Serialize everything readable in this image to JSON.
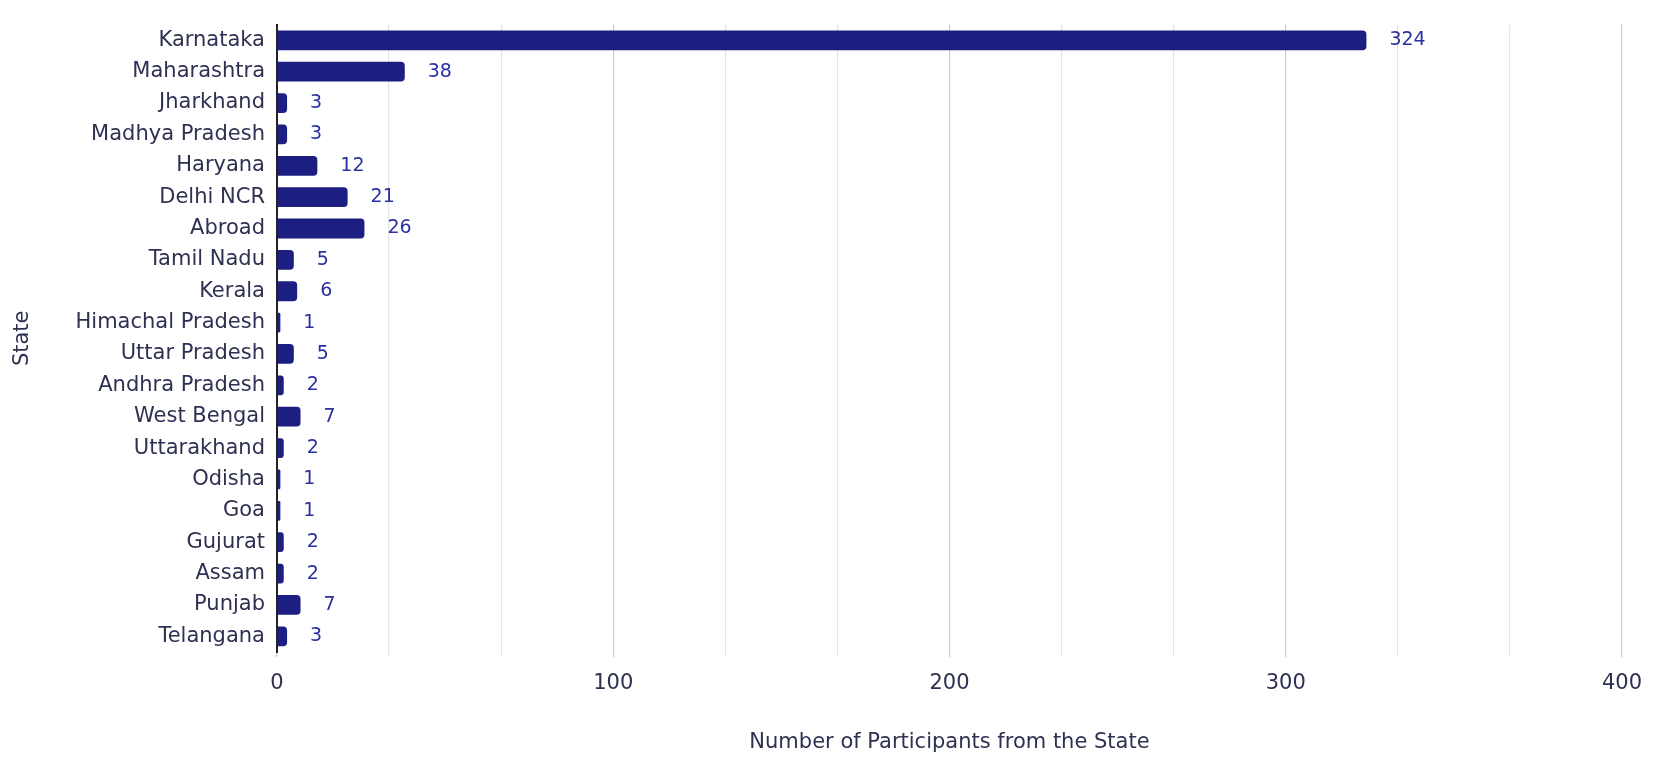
{
  "chart_data": {
    "type": "bar",
    "orientation": "horizontal",
    "xlabel": "Number of Participants from the State",
    "ylabel": "State",
    "categories": [
      "Karnataka",
      "Maharashtra",
      "Jharkhand",
      "Madhya Pradesh",
      "Haryana",
      "Delhi NCR",
      "Abroad",
      "Tamil Nadu",
      "Kerala",
      "Himachal Pradesh",
      "Uttar Pradesh",
      "Andhra Pradesh",
      "West Bengal",
      "Uttarakhand",
      "Odisha",
      "Goa",
      "Gujurat",
      "Assam",
      "Punjab",
      "Telangana"
    ],
    "values": [
      324,
      38,
      3,
      3,
      12,
      21,
      26,
      5,
      6,
      1,
      5,
      2,
      7,
      2,
      1,
      1,
      2,
      2,
      7,
      3
    ],
    "color": "#1c1e82",
    "xlim": [
      0,
      400
    ],
    "xticks": [
      0,
      {
        "value": 33.33,
        "label": null
      },
      {
        "value": 66.67,
        "label": null
      },
      100,
      {
        "value": 133.33,
        "label": null
      },
      {
        "value": 166.67,
        "label": null
      },
      200,
      {
        "value": 233.33,
        "label": null
      },
      {
        "value": 266.67,
        "label": null
      },
      300,
      {
        "value": 333.33,
        "label": null
      },
      {
        "value": 366.67,
        "label": null
      },
      400
    ],
    "grid": "x",
    "data_labels": true,
    "legend": false
  }
}
